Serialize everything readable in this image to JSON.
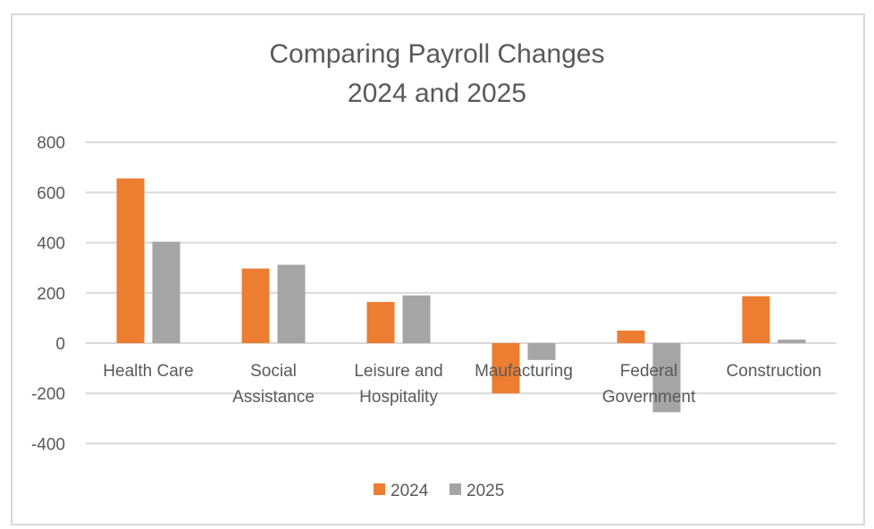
{
  "chart_data": {
    "type": "bar",
    "title": [
      "Comparing Payroll Changes",
      "2024 and 2025"
    ],
    "xlabel": "",
    "ylabel": "",
    "ylim": [
      -400,
      800
    ],
    "yticks": [
      800,
      600,
      400,
      200,
      0,
      -200,
      -400
    ],
    "ytick_labels": [
      "800",
      "600",
      "400",
      "200",
      "0",
      "-200",
      "-400"
    ],
    "grid": true,
    "legend_position": "bottom",
    "categories": [
      [
        "Health Care"
      ],
      [
        "Social",
        "Assistance"
      ],
      [
        "Leisure and",
        "Hospitality"
      ],
      [
        "Maufacturing"
      ],
      [
        "Federal",
        "Government"
      ],
      [
        "Construction"
      ]
    ],
    "series": [
      {
        "name": "2024",
        "color": "#ed7d31",
        "values": [
          656,
          297,
          164,
          -200,
          50,
          187
        ]
      },
      {
        "name": "2025",
        "color": "#a5a5a5",
        "values": [
          404,
          312,
          190,
          -67,
          -275,
          14
        ]
      }
    ]
  }
}
